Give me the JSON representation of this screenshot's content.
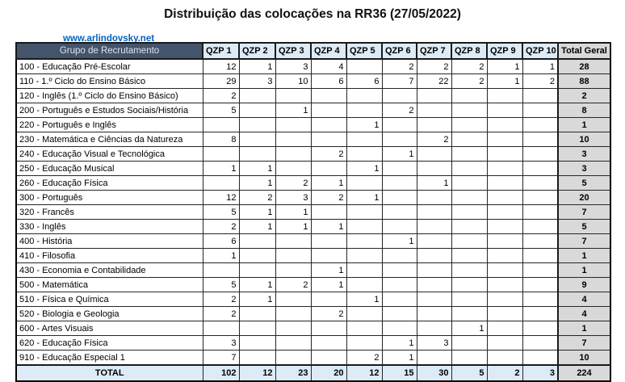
{
  "title": "Distribuição das colocações na RR36 (27/05/2022)",
  "link": {
    "label": "www.arlindovsky.net"
  },
  "colors": {
    "dark_header_bg": "#44546A",
    "dark_header_text": "#DCE6F1",
    "qzp_header_bg": "#DDEBF7",
    "total_row_bg": "#DDEBF7",
    "total_col_bg": "#D9D9D9",
    "link_color": "#0563C1"
  },
  "table": {
    "group_header": "Grupo de Recrutamento",
    "columns": [
      "QZP 1",
      "QZP 2",
      "QZP 3",
      "QZP 4",
      "QZP 5",
      "QZP 6",
      "QZP 7",
      "QZP 8",
      "QZP 9",
      "QZP 10"
    ],
    "total_column": "Total Geral",
    "rows": [
      {
        "label": "100 - Educação Pré-Escolar",
        "values": [
          "12",
          "1",
          "3",
          "4",
          "",
          "2",
          "2",
          "2",
          "1",
          "1"
        ],
        "total": "28"
      },
      {
        "label": "110 - 1.º Ciclo do Ensino Básico",
        "values": [
          "29",
          "3",
          "10",
          "6",
          "6",
          "7",
          "22",
          "2",
          "1",
          "2"
        ],
        "total": "88"
      },
      {
        "label": "120 - Inglês (1.º Ciclo do Ensino Básico)",
        "values": [
          "2",
          "",
          "",
          "",
          "",
          "",
          "",
          "",
          "",
          ""
        ],
        "total": "2"
      },
      {
        "label": "200 - Português e Estudos Sociais/História",
        "values": [
          "5",
          "",
          "1",
          "",
          "",
          "2",
          "",
          "",
          "",
          ""
        ],
        "total": "8"
      },
      {
        "label": "220 - Português e Inglês",
        "values": [
          "",
          "",
          "",
          "",
          "1",
          "",
          "",
          "",
          "",
          ""
        ],
        "total": "1"
      },
      {
        "label": "230 - Matemática e Ciências da Natureza",
        "values": [
          "8",
          "",
          "",
          "",
          "",
          "",
          "2",
          "",
          "",
          ""
        ],
        "total": "10"
      },
      {
        "label": "240 - Educação Visual e Tecnológica",
        "values": [
          "",
          "",
          "",
          "2",
          "",
          "1",
          "",
          "",
          "",
          ""
        ],
        "total": "3"
      },
      {
        "label": "250 - Educação Musical",
        "values": [
          "1",
          "1",
          "",
          "",
          "1",
          "",
          "",
          "",
          "",
          ""
        ],
        "total": "3"
      },
      {
        "label": "260 - Educação Física",
        "values": [
          "",
          "1",
          "2",
          "1",
          "",
          "",
          "1",
          "",
          "",
          ""
        ],
        "total": "5"
      },
      {
        "label": "300 - Português",
        "values": [
          "12",
          "2",
          "3",
          "2",
          "1",
          "",
          "",
          "",
          "",
          ""
        ],
        "total": "20"
      },
      {
        "label": "320 - Francês",
        "values": [
          "5",
          "1",
          "1",
          "",
          "",
          "",
          "",
          "",
          "",
          ""
        ],
        "total": "7"
      },
      {
        "label": "330 - Inglês",
        "values": [
          "2",
          "1",
          "1",
          "1",
          "",
          "",
          "",
          "",
          "",
          ""
        ],
        "total": "5"
      },
      {
        "label": "400 - História",
        "values": [
          "6",
          "",
          "",
          "",
          "",
          "1",
          "",
          "",
          "",
          ""
        ],
        "total": "7"
      },
      {
        "label": "410 - Filosofia",
        "values": [
          "1",
          "",
          "",
          "",
          "",
          "",
          "",
          "",
          "",
          ""
        ],
        "total": "1"
      },
      {
        "label": "430 - Economia e Contabilidade",
        "values": [
          "",
          "",
          "",
          "1",
          "",
          "",
          "",
          "",
          "",
          ""
        ],
        "total": "1"
      },
      {
        "label": "500 - Matemática",
        "values": [
          "5",
          "1",
          "2",
          "1",
          "",
          "",
          "",
          "",
          "",
          ""
        ],
        "total": "9"
      },
      {
        "label": "510 - Física e Química",
        "values": [
          "2",
          "1",
          "",
          "",
          "1",
          "",
          "",
          "",
          "",
          ""
        ],
        "total": "4"
      },
      {
        "label": "520 - Biologia e Geologia",
        "values": [
          "2",
          "",
          "",
          "2",
          "",
          "",
          "",
          "",
          "",
          ""
        ],
        "total": "4"
      },
      {
        "label": "600 - Artes Visuais",
        "values": [
          "",
          "",
          "",
          "",
          "",
          "",
          "",
          "1",
          "",
          ""
        ],
        "total": "1"
      },
      {
        "label": "620 - Educação Física",
        "values": [
          "3",
          "",
          "",
          "",
          "",
          "1",
          "3",
          "",
          "",
          ""
        ],
        "total": "7"
      },
      {
        "label": "910 - Educação Especial 1",
        "values": [
          "7",
          "",
          "",
          "",
          "2",
          "1",
          "",
          "",
          "",
          ""
        ],
        "total": "10"
      }
    ],
    "total_row": {
      "label": "TOTAL",
      "values": [
        "102",
        "12",
        "23",
        "20",
        "12",
        "15",
        "30",
        "5",
        "2",
        "3"
      ],
      "total": "224"
    }
  }
}
